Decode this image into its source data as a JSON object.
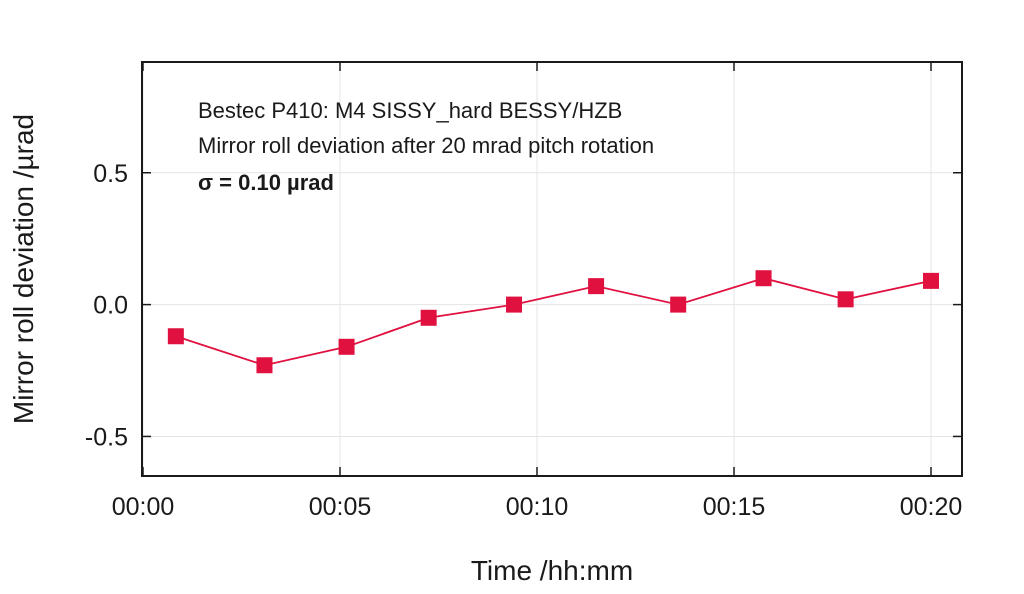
{
  "chart_data": {
    "type": "line",
    "title": "",
    "xlabel": "Time /hh:mm",
    "ylabel": "Mirror roll deviation /µrad",
    "x_tick_labels": [
      "00:00",
      "00:05",
      "00:10",
      "00:15",
      "00:20"
    ],
    "y_tick_labels": [
      "0.5",
      "0.0",
      "-0.5"
    ],
    "annotations": [
      "Bestec P410: M4 SISSY_hard BESSY/HZB",
      "Mirror roll deviation after 20 mrad pitch rotation",
      "σ = 0.10 µrad"
    ],
    "xlim": [
      "00:00",
      "00:20"
    ],
    "ylim": [
      -0.65,
      0.92
    ],
    "grid": true,
    "legend": "none",
    "series": [
      {
        "color": "#e0103f",
        "marker": "square",
        "x": [
          "00:00:50",
          "00:03:05",
          "00:05:10",
          "00:07:15",
          "00:09:25",
          "00:11:30",
          "00:13:35",
          "00:15:45",
          "00:17:50",
          "00:20:00"
        ],
        "y": [
          -0.12,
          -0.23,
          -0.16,
          -0.05,
          0.0,
          0.07,
          0.0,
          0.1,
          0.02,
          0.09
        ]
      }
    ]
  }
}
